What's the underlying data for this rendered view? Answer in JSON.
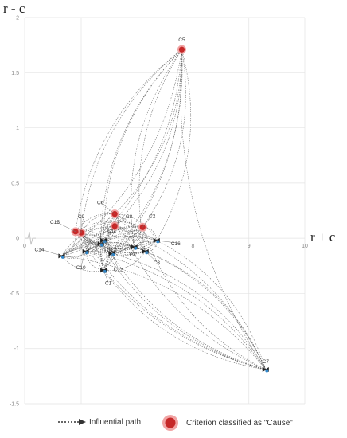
{
  "chart_data": {
    "type": "scatter",
    "title": "",
    "xlabel": "r + c",
    "ylabel": "r - c",
    "xlim": [
      4,
      10
    ],
    "ylim": [
      -1.5,
      2
    ],
    "x_break_tick": "0",
    "x_ticks": [
      6,
      8,
      9,
      10
    ],
    "y_ticks": [
      -1.5,
      -1,
      -0.5,
      0,
      0.5,
      1,
      1.5,
      2
    ],
    "grid": true,
    "legend_position": "bottom",
    "points": [
      {
        "label": "C1",
        "x": 6.4,
        "y": -0.29,
        "cause": false
      },
      {
        "label": "C2",
        "x": 7.1,
        "y": 0.1,
        "cause": true
      },
      {
        "label": "C3",
        "x": 7.15,
        "y": -0.12,
        "cause": false
      },
      {
        "label": "C4",
        "x": 6.95,
        "y": -0.08,
        "cause": false
      },
      {
        "label": "C5",
        "x": 7.8,
        "y": 1.71,
        "cause": true
      },
      {
        "label": "C6",
        "x": 6.6,
        "y": 0.22,
        "cause": true
      },
      {
        "label": "C7",
        "x": 9.3,
        "y": -1.19,
        "cause": false
      },
      {
        "label": "C8",
        "x": 6.6,
        "y": 0.11,
        "cause": true
      },
      {
        "label": "C9",
        "x": 6.0,
        "y": 0.05,
        "cause": true
      },
      {
        "label": "C10",
        "x": 6.08,
        "y": -0.12,
        "cause": false
      },
      {
        "label": "C11",
        "x": 6.35,
        "y": -0.05,
        "cause": false
      },
      {
        "label": "C12",
        "x": 6.55,
        "y": -0.14,
        "cause": false
      },
      {
        "label": "C13",
        "x": 6.4,
        "y": -0.02,
        "cause": false
      },
      {
        "label": "C14",
        "x": 5.65,
        "y": -0.16,
        "cause": false
      },
      {
        "label": "C15",
        "x": 5.9,
        "y": 0.06,
        "cause": true
      },
      {
        "label": "C16",
        "x": 7.35,
        "y": -0.02,
        "cause": false
      }
    ],
    "colors": {
      "cause": "#c62828",
      "effect": "#2f86c9",
      "arrow": "#222222",
      "path": "#555555",
      "grid": "#e3e3e3"
    }
  },
  "legend": {
    "path_label": "Influential path",
    "cause_label": "Criterion classified as \"Cause\""
  }
}
